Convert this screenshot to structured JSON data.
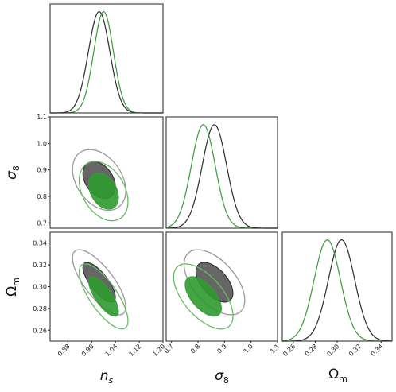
{
  "chart_data": {
    "type": "corner",
    "parameters": [
      {
        "key": "ns",
        "label_main": "n",
        "label_sub": "s",
        "ticks": [
          "0.88",
          "0.96",
          "1.04",
          "1.12",
          "1.20"
        ],
        "lim": [
          0.82,
          1.2
        ]
      },
      {
        "key": "s8",
        "label_main": "σ",
        "label_sub": "8",
        "ticks": [
          "0.7",
          "0.8",
          "0.9",
          "1.0",
          "1.1"
        ],
        "lim": [
          0.68,
          1.1
        ]
      },
      {
        "key": "om",
        "label_main": "Ω",
        "label_sub": "m",
        "ticks": [
          "0.26",
          "0.28",
          "0.30",
          "0.32",
          "0.34"
        ],
        "lim": [
          0.25,
          0.35
        ]
      }
    ],
    "colors": {
      "black_line": "#2b2b2b",
      "black_fill_1sigma": "#555555",
      "black_fill_2sigma": "#999999",
      "green_line": "#3a9a3a",
      "green_fill_1sigma": "#2e9a2e",
      "green_fill_2sigma": "#66bb66"
    },
    "series": [
      {
        "color_key": "black",
        "mean": {
          "ns": 0.985,
          "s8": 0.862,
          "om": 0.304
        },
        "sigma": {
          "ns": 0.036,
          "s8": 0.046,
          "om": 0.012
        },
        "corr": {
          "s8|ns": -0.35,
          "om|ns": -0.75,
          "om|s8": -0.55
        }
      },
      {
        "color_key": "green",
        "mean": {
          "ns": 1.0,
          "s8": 0.82,
          "om": 0.291
        },
        "sigma": {
          "ns": 0.033,
          "s8": 0.045,
          "om": 0.012
        },
        "corr": {
          "s8|ns": -0.35,
          "om|ns": -0.75,
          "om|s8": -0.6
        }
      }
    ]
  }
}
